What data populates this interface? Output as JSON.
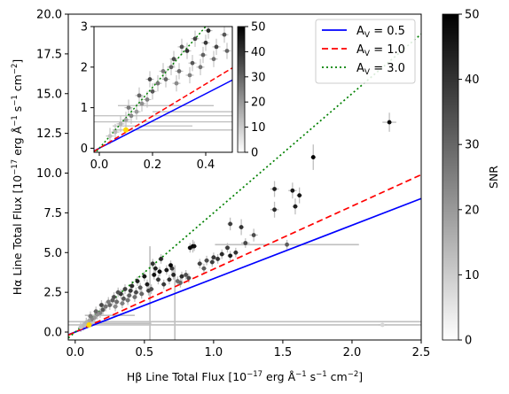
{
  "chart_data": [
    {
      "type": "scatter",
      "panel": "main",
      "xlabel_main": "Hβ Line Total Flux [10",
      "xlabel_exp": "−17",
      "xlabel_rest": " erg Å",
      "xlabel_exp2": "−1",
      "xlabel_rest2": " s",
      "xlabel_exp3": "−1",
      "xlabel_rest3": " cm",
      "xlabel_exp4": "−2",
      "xlabel_end": "]",
      "ylabel_main": "Hα Line Total Flux [10",
      "ylabel_exp": "−17",
      "ylabel_rest": " erg Å",
      "ylabel_exp2": "−1",
      "ylabel_rest2": " s",
      "ylabel_exp3": "−1",
      "ylabel_rest3": " cm",
      "ylabel_exp4": "−2",
      "ylabel_end": "]",
      "xlim": [
        -0.05,
        2.5
      ],
      "ylim": [
        -0.5,
        20.0
      ],
      "xticks": [
        0.0,
        0.5,
        1.0,
        1.5,
        2.0,
        2.5
      ],
      "xtick_labels": [
        "0.0",
        "0.5",
        "1.0",
        "1.5",
        "2.0",
        "2.5"
      ],
      "yticks": [
        0.0,
        2.5,
        5.0,
        7.5,
        10.0,
        12.5,
        15.0,
        17.5,
        20.0
      ],
      "ytick_labels": [
        "0.0",
        "2.5",
        "5.0",
        "7.5",
        "10.0",
        "12.5",
        "15.0",
        "17.5",
        "20.0"
      ],
      "lines": [
        {
          "name": "A",
          "sub": "V",
          "value": " = 0.5",
          "slope": 3.36,
          "color": "#0000ff",
          "style": "solid"
        },
        {
          "name": "A",
          "sub": "V",
          "value": " = 1.0",
          "slope": 3.96,
          "color": "#ff0000",
          "style": "dashed"
        },
        {
          "name": "A",
          "sub": "V",
          "value": " = 3.0",
          "slope": 7.5,
          "color": "#008000",
          "style": "dotted"
        }
      ],
      "highlight_point": {
        "x": 0.1,
        "y": 0.45,
        "color": "#ffd700"
      },
      "points": [
        [
          2.27,
          13.2,
          48,
          0.05,
          0.6
        ],
        [
          1.72,
          11.0,
          50,
          0.02,
          0.8
        ],
        [
          1.44,
          9.0,
          44,
          0.03,
          0.5
        ],
        [
          1.57,
          8.9,
          45,
          0.03,
          0.5
        ],
        [
          1.62,
          8.6,
          46,
          0.02,
          0.5
        ],
        [
          1.59,
          7.9,
          44,
          0.02,
          0.5
        ],
        [
          1.12,
          6.8,
          38,
          0.02,
          0.4
        ],
        [
          1.2,
          6.6,
          40,
          0.02,
          0.5
        ],
        [
          1.44,
          7.7,
          42,
          0.03,
          0.5
        ],
        [
          1.29,
          6.1,
          35,
          0.03,
          0.4
        ],
        [
          1.23,
          5.6,
          36,
          0.03,
          0.3
        ],
        [
          1.16,
          5.0,
          40,
          0.02,
          0.3
        ],
        [
          0.85,
          5.4,
          50,
          0.02,
          0.4
        ],
        [
          0.83,
          5.3,
          48,
          0.02,
          0.3
        ],
        [
          0.86,
          5.4,
          47,
          0.02,
          0.3
        ],
        [
          1.53,
          5.5,
          32,
          0.5,
          0.3
        ],
        [
          1.1,
          5.3,
          38,
          0.02,
          0.3
        ],
        [
          1.12,
          4.8,
          45,
          0.02,
          0.3
        ],
        [
          1.06,
          4.9,
          42,
          0.02,
          0.3
        ],
        [
          1.03,
          4.6,
          40,
          0.02,
          0.3
        ],
        [
          0.95,
          4.5,
          35,
          0.02,
          0.3
        ],
        [
          0.99,
          4.4,
          38,
          0.02,
          0.3
        ],
        [
          0.62,
          4.6,
          42,
          0.02,
          0.3
        ],
        [
          0.56,
          4.3,
          40,
          0.02,
          0.3
        ],
        [
          0.58,
          4.0,
          44,
          0.02,
          0.3
        ],
        [
          0.66,
          3.9,
          45,
          0.02,
          0.3
        ],
        [
          0.7,
          4.0,
          38,
          0.02,
          0.3
        ],
        [
          0.71,
          3.6,
          43,
          0.02,
          0.3
        ],
        [
          0.77,
          3.5,
          41,
          0.02,
          0.3
        ],
        [
          0.82,
          3.4,
          36,
          0.02,
          0.3
        ],
        [
          0.76,
          3.1,
          30,
          0.02,
          0.3
        ],
        [
          0.6,
          3.3,
          40,
          0.02,
          0.3
        ],
        [
          0.52,
          3.0,
          45,
          0.02,
          0.3
        ],
        [
          0.47,
          2.8,
          33,
          0.02,
          0.3
        ],
        [
          0.53,
          2.6,
          38,
          0.02,
          0.3
        ],
        [
          0.44,
          2.5,
          36,
          0.02,
          0.3
        ],
        [
          0.41,
          2.9,
          42,
          0.02,
          0.3
        ],
        [
          0.39,
          2.3,
          31,
          0.02,
          0.3
        ],
        [
          0.35,
          2.1,
          33,
          0.02,
          0.3
        ],
        [
          0.33,
          2.4,
          40,
          0.02,
          0.3
        ],
        [
          0.3,
          1.9,
          29,
          0.02,
          0.3
        ],
        [
          0.28,
          2.2,
          35,
          0.02,
          0.3
        ],
        [
          0.25,
          1.7,
          30,
          0.02,
          0.3
        ],
        [
          0.22,
          1.6,
          27,
          0.02,
          0.3
        ],
        [
          0.2,
          1.4,
          33,
          0.02,
          0.3
        ],
        [
          0.18,
          1.2,
          25,
          0.02,
          0.3
        ],
        [
          0.16,
          1.1,
          22,
          0.02,
          0.3
        ],
        [
          0.14,
          0.9,
          20,
          0.02,
          0.3
        ],
        [
          0.12,
          0.8,
          24,
          0.02,
          0.3
        ],
        [
          0.1,
          0.7,
          18,
          0.02,
          0.3
        ],
        [
          0.08,
          0.6,
          15,
          0.02,
          0.3
        ],
        [
          0.06,
          0.4,
          14,
          0.02,
          0.3
        ],
        [
          0.04,
          0.3,
          12,
          0.02,
          0.3
        ],
        [
          0.45,
          3.2,
          44,
          0.02,
          0.3
        ],
        [
          0.5,
          3.5,
          46,
          0.02,
          0.3
        ],
        [
          0.36,
          2.7,
          37,
          0.02,
          0.3
        ],
        [
          0.31,
          2.5,
          34,
          0.02,
          0.3
        ],
        [
          0.27,
          2.0,
          31,
          0.02,
          0.3
        ],
        [
          0.24,
          1.9,
          26,
          0.02,
          0.3
        ],
        [
          0.43,
          2.2,
          28,
          0.02,
          0.3
        ],
        [
          0.48,
          2.4,
          30,
          0.02,
          0.3
        ],
        [
          0.55,
          2.7,
          35,
          0.02,
          0.3
        ],
        [
          0.64,
          3.0,
          39,
          0.02,
          0.3
        ],
        [
          0.68,
          3.3,
          41,
          0.02,
          0.3
        ],
        [
          0.74,
          3.2,
          29,
          0.02,
          0.3
        ],
        [
          0.8,
          3.6,
          34,
          0.02,
          0.3
        ],
        [
          0.9,
          4.3,
          37,
          0.02,
          0.3
        ],
        [
          0.93,
          4.0,
          32,
          0.02,
          0.3
        ],
        [
          1.0,
          4.7,
          39,
          0.02,
          0.3
        ],
        [
          0.19,
          1.7,
          36,
          0.02,
          0.3
        ],
        [
          0.15,
          1.3,
          30,
          0.02,
          0.3
        ],
        [
          0.11,
          1.0,
          26,
          0.02,
          0.3
        ],
        [
          0.29,
          1.6,
          23,
          0.02,
          0.3
        ],
        [
          0.34,
          1.8,
          25,
          0.02,
          0.3
        ],
        [
          0.38,
          2.0,
          27,
          0.02,
          0.3
        ],
        [
          0.4,
          2.6,
          39,
          0.02,
          0.3
        ],
        [
          0.57,
          3.6,
          47,
          0.02,
          0.3
        ],
        [
          0.61,
          3.8,
          48,
          0.02,
          0.3
        ],
        [
          0.69,
          4.2,
          49,
          0.02,
          0.3
        ],
        [
          2.22,
          0.45,
          8,
          0.03,
          0.1
        ]
      ],
      "wide_errors": [
        {
          "x": 0.54,
          "y": 0.8,
          "dx": 0.0,
          "dy": 4.6
        },
        {
          "x": 0.72,
          "y": 0.6,
          "dx": 0.0,
          "dy": 3.6
        },
        {
          "x": 1.53,
          "y": 5.5,
          "dx": 0.52,
          "dy": 0.0
        },
        {
          "x": 1.2,
          "y": 0.45,
          "dx": 1.3,
          "dy": 0.0
        },
        {
          "x": 1.0,
          "y": 0.65,
          "dx": 1.5,
          "dy": 0.0
        },
        {
          "x": 0.3,
          "y": 0.55,
          "dx": 0.25,
          "dy": 0.0
        },
        {
          "x": 0.25,
          "y": 1.05,
          "dx": 0.18,
          "dy": 0.0
        }
      ]
    },
    {
      "type": "scatter",
      "panel": "inset",
      "xlim": [
        -0.02,
        0.5
      ],
      "ylim": [
        -0.1,
        3.0
      ],
      "xticks": [
        0.0,
        0.2,
        0.4
      ],
      "xtick_labels": [
        "0.0",
        "0.2",
        "0.4"
      ],
      "yticks": [
        0,
        1,
        2,
        3
      ],
      "ytick_labels": [
        "0",
        "1",
        "2",
        "3"
      ],
      "highlight_point": {
        "x": 0.1,
        "y": 0.45,
        "color": "#ffd700"
      },
      "h_errbars": [
        {
          "y": 0.8,
          "x0": -0.02,
          "x1": 0.5
        },
        {
          "y": 0.65,
          "x0": -0.02,
          "x1": 0.5
        },
        {
          "y": 0.45,
          "x0": 0.05,
          "x1": 0.5
        },
        {
          "y": 0.55,
          "x0": 0.05,
          "x1": 0.35
        },
        {
          "y": 1.05,
          "x0": 0.07,
          "x1": 0.43
        },
        {
          "y": 0.9,
          "x0": 0.2,
          "x1": 0.5
        }
      ]
    }
  ],
  "colorbar": {
    "label": "SNR",
    "ticks": [
      0,
      10,
      20,
      30,
      40,
      50
    ],
    "tick_labels": [
      "0",
      "10",
      "20",
      "30",
      "40",
      "50"
    ]
  },
  "inset_colorbar": {
    "ticks": [
      0,
      10,
      20,
      30,
      40,
      50
    ],
    "tick_labels": [
      "0",
      "10",
      "20",
      "30",
      "40",
      "50"
    ]
  }
}
